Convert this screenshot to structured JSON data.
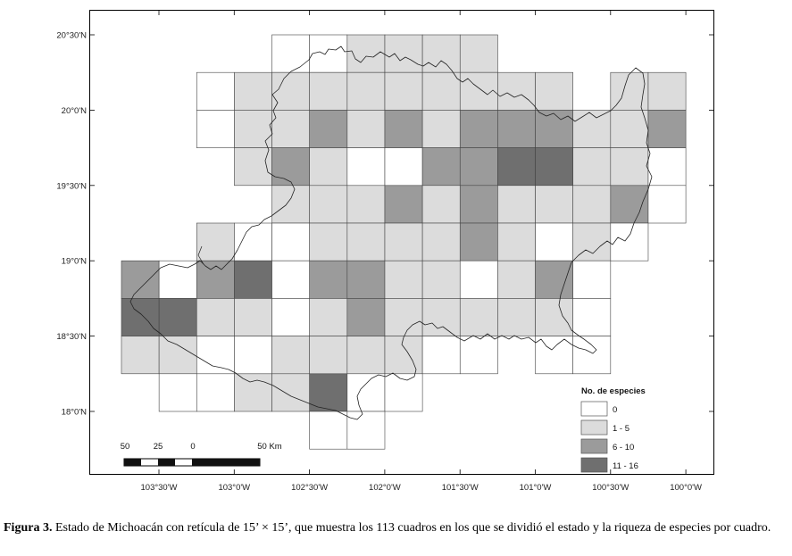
{
  "map": {
    "lat_labels": [
      "20°30'N",
      "20°0'N",
      "19°30'N",
      "19°0'N",
      "18°30'N",
      "18°0'N"
    ],
    "lon_labels": [
      "103°30'W",
      "103°0'W",
      "102°30'W",
      "102°0'W",
      "101°30'W",
      "101°0'W",
      "100°30'W",
      "100°0'W"
    ],
    "grid_cell": "15' × 15'",
    "total_cells": 113,
    "species_classes": [
      "0",
      "1 - 5",
      "6 - 10",
      "11 - 16"
    ],
    "class_colors": [
      "#ffffff",
      "#dcdcdc",
      "#9b9b9b",
      "#6f6f6f"
    ],
    "cells_by_row": [
      {
        "row": 0,
        "cells": [
          [
            4,
            0
          ],
          [
            5,
            0
          ],
          [
            6,
            1
          ],
          [
            7,
            1
          ],
          [
            8,
            1
          ],
          [
            9,
            1
          ]
        ]
      },
      {
        "row": 1,
        "cells": [
          [
            2,
            0
          ],
          [
            3,
            1
          ],
          [
            4,
            1
          ],
          [
            5,
            1
          ],
          [
            6,
            1
          ],
          [
            7,
            1
          ],
          [
            8,
            1
          ],
          [
            9,
            1
          ],
          [
            10,
            1
          ],
          [
            11,
            1
          ],
          [
            13,
            1
          ],
          [
            14,
            1
          ]
        ]
      },
      {
        "row": 2,
        "cells": [
          [
            2,
            0
          ],
          [
            3,
            1
          ],
          [
            4,
            1
          ],
          [
            5,
            2
          ],
          [
            6,
            1
          ],
          [
            7,
            2
          ],
          [
            8,
            1
          ],
          [
            9,
            2
          ],
          [
            10,
            2
          ],
          [
            11,
            2
          ],
          [
            12,
            1
          ],
          [
            13,
            1
          ],
          [
            14,
            2
          ]
        ]
      },
      {
        "row": 3,
        "cells": [
          [
            3,
            1
          ],
          [
            4,
            2
          ],
          [
            5,
            1
          ],
          [
            6,
            0
          ],
          [
            7,
            0
          ],
          [
            8,
            2
          ],
          [
            9,
            2
          ],
          [
            10,
            3
          ],
          [
            11,
            3
          ],
          [
            12,
            1
          ],
          [
            13,
            1
          ],
          [
            14,
            0
          ]
        ]
      },
      {
        "row": 4,
        "cells": [
          [
            4,
            1
          ],
          [
            5,
            1
          ],
          [
            6,
            1
          ],
          [
            7,
            2
          ],
          [
            8,
            1
          ],
          [
            9,
            2
          ],
          [
            10,
            1
          ],
          [
            11,
            1
          ],
          [
            12,
            1
          ],
          [
            13,
            2
          ],
          [
            14,
            0
          ]
        ]
      },
      {
        "row": 5,
        "cells": [
          [
            2,
            1
          ],
          [
            3,
            0
          ],
          [
            4,
            0
          ],
          [
            5,
            1
          ],
          [
            6,
            1
          ],
          [
            7,
            1
          ],
          [
            8,
            1
          ],
          [
            9,
            2
          ],
          [
            10,
            1
          ],
          [
            11,
            0
          ],
          [
            12,
            1
          ],
          [
            13,
            0
          ]
        ]
      },
      {
        "row": 6,
        "cells": [
          [
            0,
            2
          ],
          [
            1,
            0
          ],
          [
            2,
            2
          ],
          [
            3,
            3
          ],
          [
            4,
            0
          ],
          [
            5,
            2
          ],
          [
            6,
            2
          ],
          [
            7,
            1
          ],
          [
            8,
            1
          ],
          [
            9,
            0
          ],
          [
            10,
            1
          ],
          [
            11,
            2
          ],
          [
            12,
            0
          ]
        ]
      },
      {
        "row": 7,
        "cells": [
          [
            0,
            3
          ],
          [
            1,
            3
          ],
          [
            2,
            1
          ],
          [
            3,
            1
          ],
          [
            4,
            0
          ],
          [
            5,
            1
          ],
          [
            6,
            2
          ],
          [
            7,
            1
          ],
          [
            8,
            1
          ],
          [
            9,
            1
          ],
          [
            10,
            1
          ],
          [
            11,
            1
          ],
          [
            12,
            0
          ]
        ]
      },
      {
        "row": 8,
        "cells": [
          [
            0,
            1
          ],
          [
            1,
            1
          ],
          [
            2,
            0
          ],
          [
            3,
            0
          ],
          [
            4,
            1
          ],
          [
            5,
            1
          ],
          [
            6,
            1
          ],
          [
            7,
            1
          ],
          [
            8,
            0
          ],
          [
            9,
            0
          ],
          [
            11,
            0
          ],
          [
            12,
            0
          ]
        ]
      },
      {
        "row": 9,
        "cells": [
          [
            1,
            0
          ],
          [
            2,
            0
          ],
          [
            3,
            1
          ],
          [
            4,
            1
          ],
          [
            5,
            3
          ],
          [
            6,
            0
          ],
          [
            7,
            0
          ]
        ]
      },
      {
        "row": 10,
        "cells": [
          [
            5,
            0
          ],
          [
            6,
            0
          ]
        ]
      }
    ],
    "legend": {
      "title": "No. de especies",
      "items": [
        "0",
        "1 - 5",
        "6 - 10",
        "11 - 16"
      ]
    },
    "scale_bar": {
      "labels": [
        "50",
        "25",
        "0",
        "50 Km"
      ]
    }
  },
  "caption": {
    "label": "Figura 3.",
    "text": " Estado de Michoacán con retícula de 15’ × 15’, que muestra los 113 cuadros en los que se dividió el estado y la riqueza de especies por cuadro."
  }
}
